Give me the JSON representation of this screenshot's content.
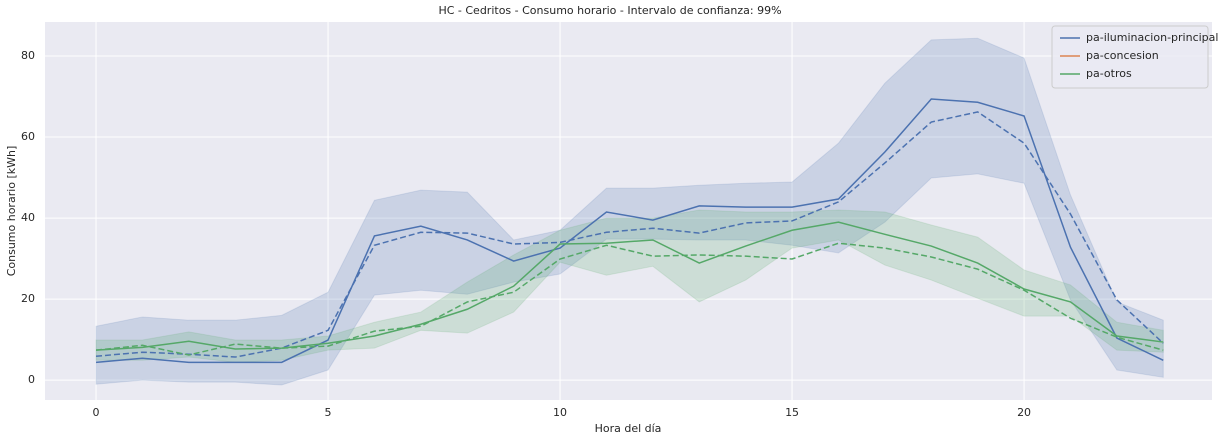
{
  "chart_data": {
    "type": "line",
    "title": "HC - Cedritos - Consumo horario - Intervalo de confianza: 99%",
    "x_label": "Hora del día",
    "y_label": "Consumo horario [kWh]",
    "x": [
      0,
      1,
      2,
      3,
      4,
      5,
      6,
      7,
      8,
      9,
      10,
      11,
      12,
      13,
      14,
      15,
      16,
      17,
      18,
      19,
      20,
      21,
      22,
      23
    ],
    "xlim": [
      -1.1,
      24.05
    ],
    "ylim": [
      -4.9,
      88.4
    ],
    "xticks": [
      0,
      5,
      10,
      15,
      20
    ],
    "yticks": [
      0,
      20,
      40,
      60,
      80
    ],
    "grid": true,
    "legend": "upper right",
    "series": [
      {
        "name": "pa-iluminacion-principal",
        "color": "#4c72b0",
        "values": [
          4.4,
          5.4,
          4.4,
          4.4,
          4.4,
          9.9,
          35.6,
          38,
          34.6,
          29.4,
          32.6,
          41.5,
          39.5,
          43,
          42.7,
          42.7,
          44.7,
          56.3,
          69.4,
          68.6,
          65.2,
          32.8,
          10.4,
          4.9
        ],
        "values_dashed": [
          5.9,
          6.9,
          6.4,
          5.7,
          7.9,
          12.3,
          33.3,
          36.5,
          36.3,
          33.6,
          34,
          36.5,
          37.5,
          36.3,
          38.8,
          39.3,
          44,
          53.6,
          63.7,
          66.2,
          58.5,
          41,
          19.8,
          9.1
        ],
        "upper": [
          13.3,
          15.6,
          14.8,
          14.8,
          16,
          21.7,
          44.4,
          46.9,
          46.4,
          34.6,
          37,
          47.4,
          47.4,
          48.1,
          48.6,
          48.9,
          58.5,
          73.3,
          84,
          84.4,
          79.5,
          45.7,
          19.3,
          14.8
        ],
        "lower": [
          -1,
          0,
          -0.5,
          -0.5,
          -1.2,
          2.5,
          21,
          22.2,
          21.2,
          24.2,
          26.2,
          34.8,
          34.8,
          34.6,
          34.6,
          33.3,
          31.4,
          39,
          49.9,
          50.9,
          48.6,
          19.8,
          2.5,
          0.7
        ]
      },
      {
        "name": "pa-concesion",
        "color": "#dd8452"
      },
      {
        "name": "pa-otros",
        "color": "#55a868",
        "values": [
          7.4,
          8.1,
          9.6,
          7.7,
          7.9,
          9.1,
          10.9,
          13.8,
          17.5,
          23.2,
          33.6,
          33.8,
          34.6,
          28.9,
          33.1,
          37,
          39,
          36,
          33.1,
          28.9,
          22.5,
          19.3,
          10.9,
          9.4
        ],
        "values_dashed": [
          7.4,
          8.6,
          6.2,
          8.9,
          7.9,
          8.4,
          12.1,
          13.3,
          19.3,
          21.7,
          29.9,
          33.3,
          30.6,
          30.9,
          30.6,
          29.9,
          33.8,
          32.6,
          30.4,
          27.4,
          22.2,
          15.3,
          10.6,
          7.4
        ],
        "upper": [
          9.9,
          9.9,
          11.9,
          9.9,
          9.9,
          10.9,
          14.3,
          16.8,
          24.2,
          30.9,
          37,
          40,
          40,
          42,
          41.5,
          41.5,
          42,
          41.5,
          38.3,
          35.3,
          27.2,
          23.5,
          14.3,
          12.3
        ],
        "lower": [
          4.9,
          4.9,
          5.7,
          4.4,
          4.9,
          7.4,
          7.9,
          12.3,
          11.6,
          16.8,
          29.1,
          25.9,
          28.1,
          19.3,
          24.7,
          32.6,
          34.6,
          28.4,
          24.7,
          20.2,
          15.8,
          15.8,
          7.4,
          6.9
        ]
      }
    ]
  }
}
